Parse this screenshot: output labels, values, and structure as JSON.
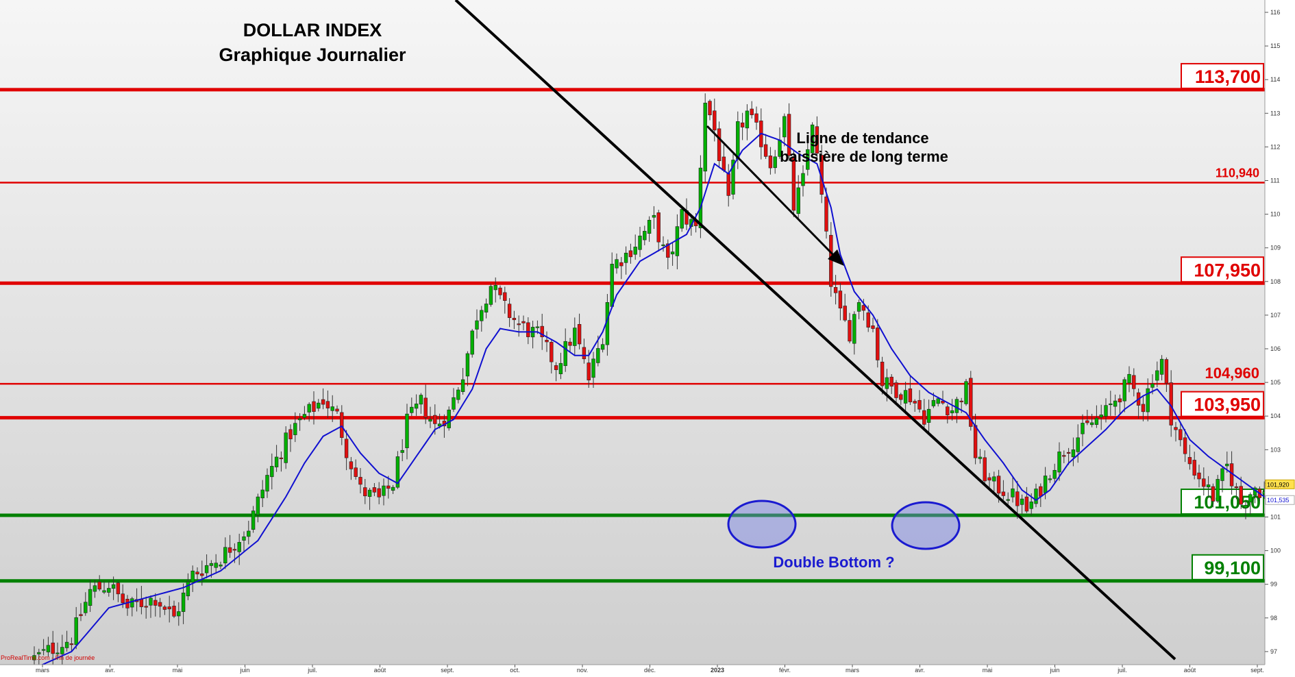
{
  "chart_data": {
    "type": "candlestick",
    "title": "DOLLAR INDEX",
    "subtitle": "Graphique Journalier",
    "source_label": "ProRealTime.com - Fin de journée",
    "x_ticks": [
      "mars",
      "avr.",
      "mai",
      "juin",
      "juil.",
      "août",
      "sept.",
      "oct.",
      "nov.",
      "déc.",
      "2023",
      "févr.",
      "mars",
      "avr.",
      "mai",
      "juin",
      "juil.",
      "août",
      "sept."
    ],
    "y_ticks": [
      "97",
      "98",
      "99",
      "100",
      "101",
      "102",
      "103",
      "104",
      "105",
      "106",
      "107",
      "108",
      "109",
      "110",
      "111",
      "112",
      "113",
      "114",
      "115",
      "116"
    ],
    "ylim": [
      96.6,
      116.4
    ],
    "levels": [
      {
        "value": 113.7,
        "label": "113,700",
        "color": "#e00000",
        "boxed": true
      },
      {
        "value": 110.94,
        "label": "110,940",
        "color": "#e00000",
        "boxed": false
      },
      {
        "value": 107.95,
        "label": "107,950",
        "color": "#e00000",
        "boxed": true
      },
      {
        "value": 104.96,
        "label": "104,960",
        "color": "#e00000",
        "boxed": false
      },
      {
        "value": 103.95,
        "label": "103,950",
        "color": "#e00000",
        "boxed": true
      },
      {
        "value": 101.05,
        "label": "101,050",
        "color": "#008000",
        "boxed": true
      },
      {
        "value": 99.1,
        "label": "99,100",
        "color": "#008000",
        "boxed": true
      }
    ],
    "price_tags": [
      {
        "value": 101.92,
        "label": "101,920"
      },
      {
        "value": 101.535,
        "label": "101,535"
      }
    ],
    "series": [
      {
        "name": "",
        "kind": "close",
        "points": [
          [
            0,
            96.8
          ],
          [
            8,
            97.4
          ],
          [
            12,
            98.8
          ],
          [
            16,
            99.0
          ],
          [
            20,
            98.3
          ],
          [
            26,
            98.6
          ],
          [
            30,
            98.0
          ],
          [
            34,
            99.3
          ],
          [
            40,
            99.8
          ],
          [
            46,
            100.7
          ],
          [
            50,
            102.2
          ],
          [
            55,
            103.5
          ],
          [
            58,
            104.0
          ],
          [
            62,
            104.5
          ],
          [
            65,
            104.0
          ],
          [
            67,
            103.0
          ],
          [
            70,
            101.8
          ],
          [
            74,
            101.5
          ],
          [
            77,
            102.0
          ],
          [
            80,
            103.8
          ],
          [
            83,
            104.4
          ],
          [
            86,
            103.7
          ],
          [
            89,
            104.1
          ],
          [
            92,
            105.3
          ],
          [
            95,
            107.0
          ],
          [
            98,
            107.9
          ],
          [
            101,
            107.2
          ],
          [
            104,
            106.7
          ],
          [
            108,
            106.4
          ],
          [
            112,
            105.5
          ],
          [
            116,
            106.5
          ],
          [
            119,
            105.1
          ],
          [
            122,
            106.4
          ],
          [
            124,
            108.5
          ],
          [
            127,
            108.8
          ],
          [
            130,
            109.3
          ],
          [
            133,
            109.8
          ],
          [
            136,
            108.5
          ],
          [
            139,
            110.0
          ],
          [
            142,
            109.6
          ],
          [
            144,
            113.4
          ],
          [
            146,
            112.5
          ],
          [
            149,
            110.3
          ],
          [
            151,
            112.5
          ],
          [
            153,
            113.0
          ],
          [
            156,
            112.2
          ],
          [
            158,
            111.5
          ],
          [
            161,
            112.8
          ],
          [
            163,
            110.2
          ],
          [
            165,
            111.0
          ],
          [
            167,
            112.8
          ],
          [
            169,
            110.5
          ],
          [
            171,
            108.0
          ],
          [
            173,
            107.0
          ],
          [
            175,
            106.5
          ],
          [
            177,
            107.5
          ],
          [
            180,
            106.6
          ],
          [
            182,
            105.0
          ],
          [
            185,
            104.8
          ],
          [
            188,
            104.6
          ],
          [
            191,
            104.0
          ],
          [
            194,
            104.5
          ],
          [
            197,
            104.2
          ],
          [
            200,
            104.8
          ],
          [
            202,
            102.8
          ],
          [
            205,
            102.0
          ],
          [
            208,
            101.8
          ],
          [
            211,
            101.5
          ],
          [
            213,
            101.2
          ],
          [
            215,
            101.6
          ],
          [
            218,
            102.4
          ],
          [
            221,
            103.0
          ],
          [
            224,
            103.4
          ],
          [
            227,
            103.8
          ],
          [
            230,
            104.1
          ],
          [
            232,
            104.5
          ],
          [
            235,
            105.0
          ],
          [
            238,
            104.3
          ],
          [
            240,
            105.2
          ],
          [
            242,
            105.6
          ],
          [
            244,
            104.0
          ],
          [
            247,
            102.8
          ],
          [
            250,
            102.2
          ],
          [
            253,
            101.6
          ],
          [
            256,
            102.5
          ],
          [
            259,
            101.4
          ],
          [
            262,
            101.9
          ],
          [
            265,
            101.6
          ],
          [
            268,
            101.9
          ],
          [
            270,
            101.5
          ],
          [
            272,
            101.9
          ]
        ]
      },
      {
        "name": "",
        "kind": "moving_average",
        "points": [
          [
            0,
            96.5
          ],
          [
            8,
            97.0
          ],
          [
            16,
            98.3
          ],
          [
            24,
            98.6
          ],
          [
            32,
            98.9
          ],
          [
            40,
            99.4
          ],
          [
            48,
            100.3
          ],
          [
            54,
            101.6
          ],
          [
            58,
            102.6
          ],
          [
            62,
            103.4
          ],
          [
            66,
            103.7
          ],
          [
            70,
            102.9
          ],
          [
            74,
            102.3
          ],
          [
            78,
            102.0
          ],
          [
            82,
            102.8
          ],
          [
            86,
            103.6
          ],
          [
            90,
            103.9
          ],
          [
            94,
            104.8
          ],
          [
            97,
            106.0
          ],
          [
            100,
            106.6
          ],
          [
            104,
            106.5
          ],
          [
            108,
            106.5
          ],
          [
            112,
            106.2
          ],
          [
            116,
            105.8
          ],
          [
            119,
            105.8
          ],
          [
            122,
            106.5
          ],
          [
            125,
            107.6
          ],
          [
            130,
            108.6
          ],
          [
            135,
            109.0
          ],
          [
            140,
            109.4
          ],
          [
            143,
            110.2
          ],
          [
            146,
            111.5
          ],
          [
            149,
            111.2
          ],
          [
            152,
            111.9
          ],
          [
            156,
            112.4
          ],
          [
            160,
            112.2
          ],
          [
            164,
            111.8
          ],
          [
            168,
            111.5
          ],
          [
            171,
            110.2
          ],
          [
            173,
            108.8
          ],
          [
            176,
            107.7
          ],
          [
            180,
            107.0
          ],
          [
            184,
            106.0
          ],
          [
            188,
            105.2
          ],
          [
            192,
            104.7
          ],
          [
            196,
            104.4
          ],
          [
            200,
            104.1
          ],
          [
            204,
            103.3
          ],
          [
            208,
            102.6
          ],
          [
            212,
            101.8
          ],
          [
            215,
            101.5
          ],
          [
            218,
            101.8
          ],
          [
            222,
            102.6
          ],
          [
            226,
            103.1
          ],
          [
            230,
            103.6
          ],
          [
            234,
            104.2
          ],
          [
            238,
            104.6
          ],
          [
            241,
            104.8
          ],
          [
            244,
            104.3
          ],
          [
            248,
            103.3
          ],
          [
            252,
            102.8
          ],
          [
            256,
            102.4
          ],
          [
            260,
            102.0
          ],
          [
            264,
            101.6
          ],
          [
            268,
            101.7
          ],
          [
            272,
            101.54
          ]
        ]
      }
    ]
  },
  "annotations": {
    "trendline_label_1": "Ligne de tendance",
    "trendline_label_2": "baissière de long terme",
    "double_bottom": "Double Bottom ?"
  }
}
